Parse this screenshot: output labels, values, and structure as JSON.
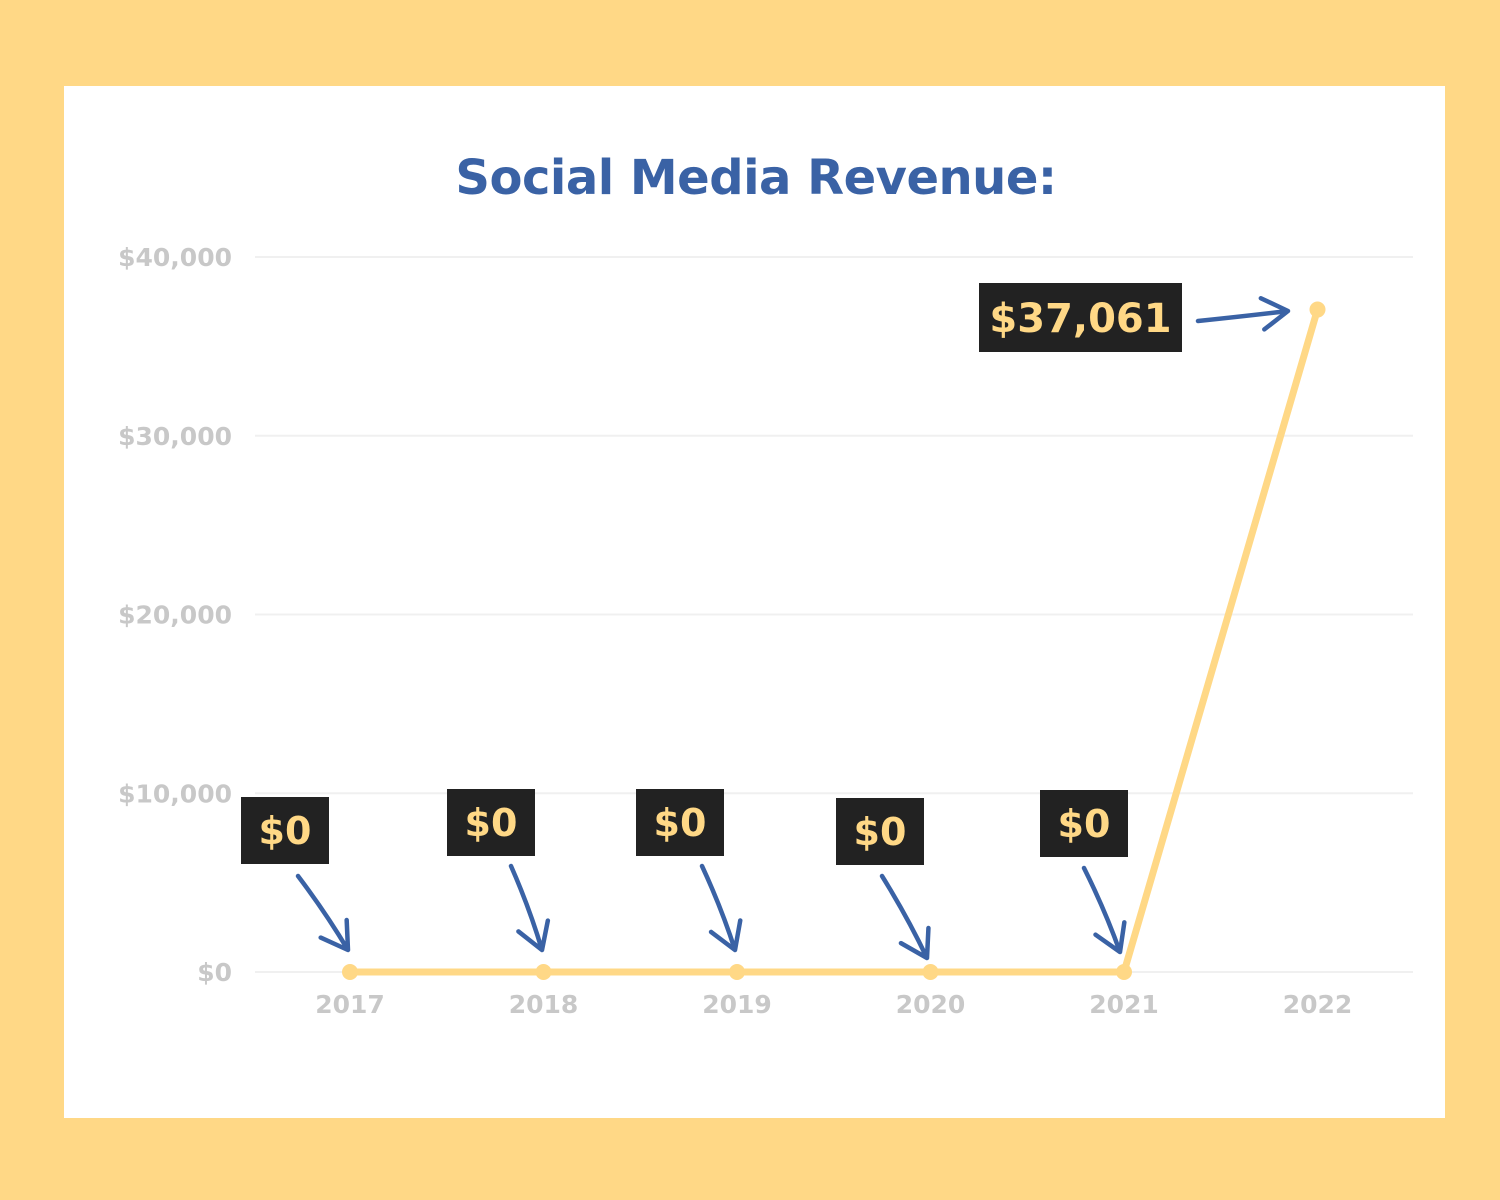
{
  "chart_data": {
    "type": "line",
    "title": "Social Media Revenue:",
    "categories": [
      "2017",
      "2018",
      "2019",
      "2020",
      "2021",
      "2022"
    ],
    "values": [
      0,
      0,
      0,
      0,
      0,
      37061
    ],
    "ylim": [
      0,
      40000
    ],
    "yticks": [
      0,
      10000,
      20000,
      30000,
      40000
    ],
    "ytick_labels": [
      "$0",
      "$10,000",
      "$20,000",
      "$30,000",
      "$40,000"
    ],
    "annotations": [
      "$0",
      "$0",
      "$0",
      "$0",
      "$0",
      "$37,061"
    ],
    "grid": true,
    "line_color": "#FFD886",
    "arrow_color": "#3A62A5",
    "callout_bg": "#222222",
    "callout_text_color": "#FFD886",
    "title_color": "#3A62A5",
    "tick_color": "#C8C8C8",
    "background": "#FFD886"
  }
}
